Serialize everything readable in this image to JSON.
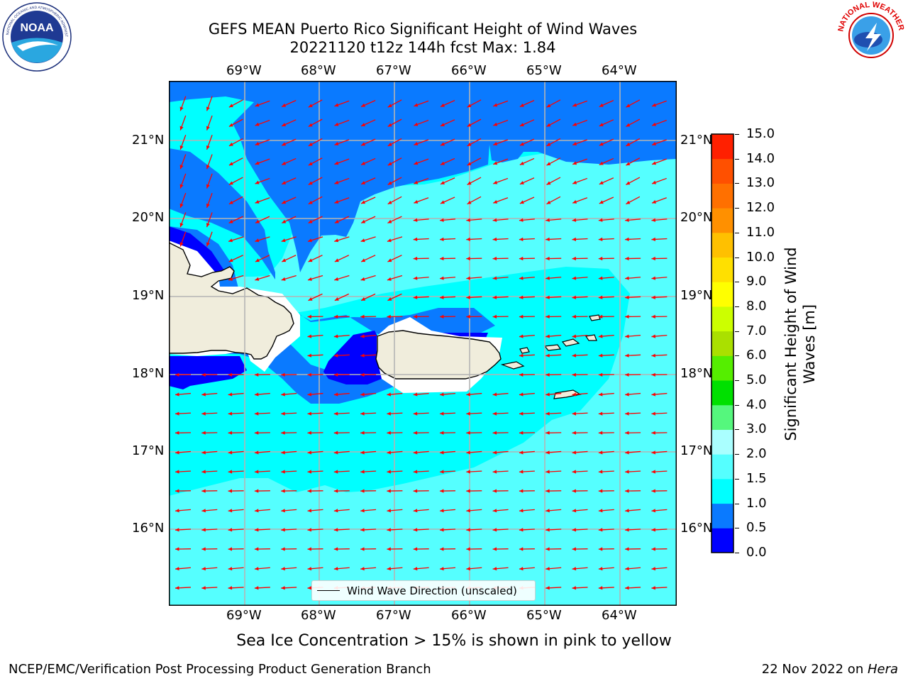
{
  "header": {
    "title_line1": "GEFS MEAN Puerto Rico Significant Height of Wind Waves",
    "title_line2": "20221120 t12z 144h fcst   Max: 1.84"
  },
  "logos": {
    "noaa_text": "NOAA",
    "noaa_ring": "NATIONAL OCEANIC AND ATMOSPHERIC ADMINISTRATION",
    "noaa_ring_bottom": "U.S. DEPARTMENT OF COMMERCE",
    "nws_ring": "NATIONAL WEATHER SERVICE"
  },
  "map": {
    "lon_labels": [
      "69°W",
      "68°W",
      "67°W",
      "66°W",
      "65°W",
      "64°W"
    ],
    "lat_labels": [
      "21°N",
      "20°N",
      "19°N",
      "18°N",
      "17°N",
      "16°N"
    ],
    "legend_label": "Wind Wave Direction (unscaled)"
  },
  "colorbar": {
    "label_line1": "Significant Height of Wind",
    "label_line2": "Waves [m]",
    "ticks": [
      "0.0",
      "0.5",
      "1.0",
      "1.5",
      "2.0",
      "3.0",
      "4.0",
      "5.0",
      "6.0",
      "7.0",
      "8.0",
      "9.0",
      "10.0",
      "11.0",
      "12.0",
      "13.0",
      "14.0",
      "15.0"
    ],
    "colors": [
      "#0000ff",
      "#0a7aff",
      "#00ffff",
      "#55ffff",
      "#aaffff",
      "#55f77d",
      "#00e000",
      "#55ee00",
      "#aae000",
      "#ccff00",
      "#ffff00",
      "#ffe000",
      "#ffc000",
      "#ff9000",
      "#ff7000",
      "#ff5000",
      "#ff2000"
    ]
  },
  "sea_ice_note": "Sea Ice Concentration > 15% is shown in pink to yellow",
  "footer": {
    "left": "NCEP/EMC/Verification Post Processing Product Generation Branch",
    "right_date": "22 Nov 2022 on ",
    "right_host": "Hera"
  },
  "map_colors": {
    "land": "#f0eddc",
    "band_0_0_5": "#0000ff",
    "band_0_5_1": "#0a7aff",
    "band_1_1_5": "#00ffff",
    "band_1_5_2": "#55ffff",
    "band_2_3": "#aaffff",
    "arrow": "#ff0000"
  }
}
